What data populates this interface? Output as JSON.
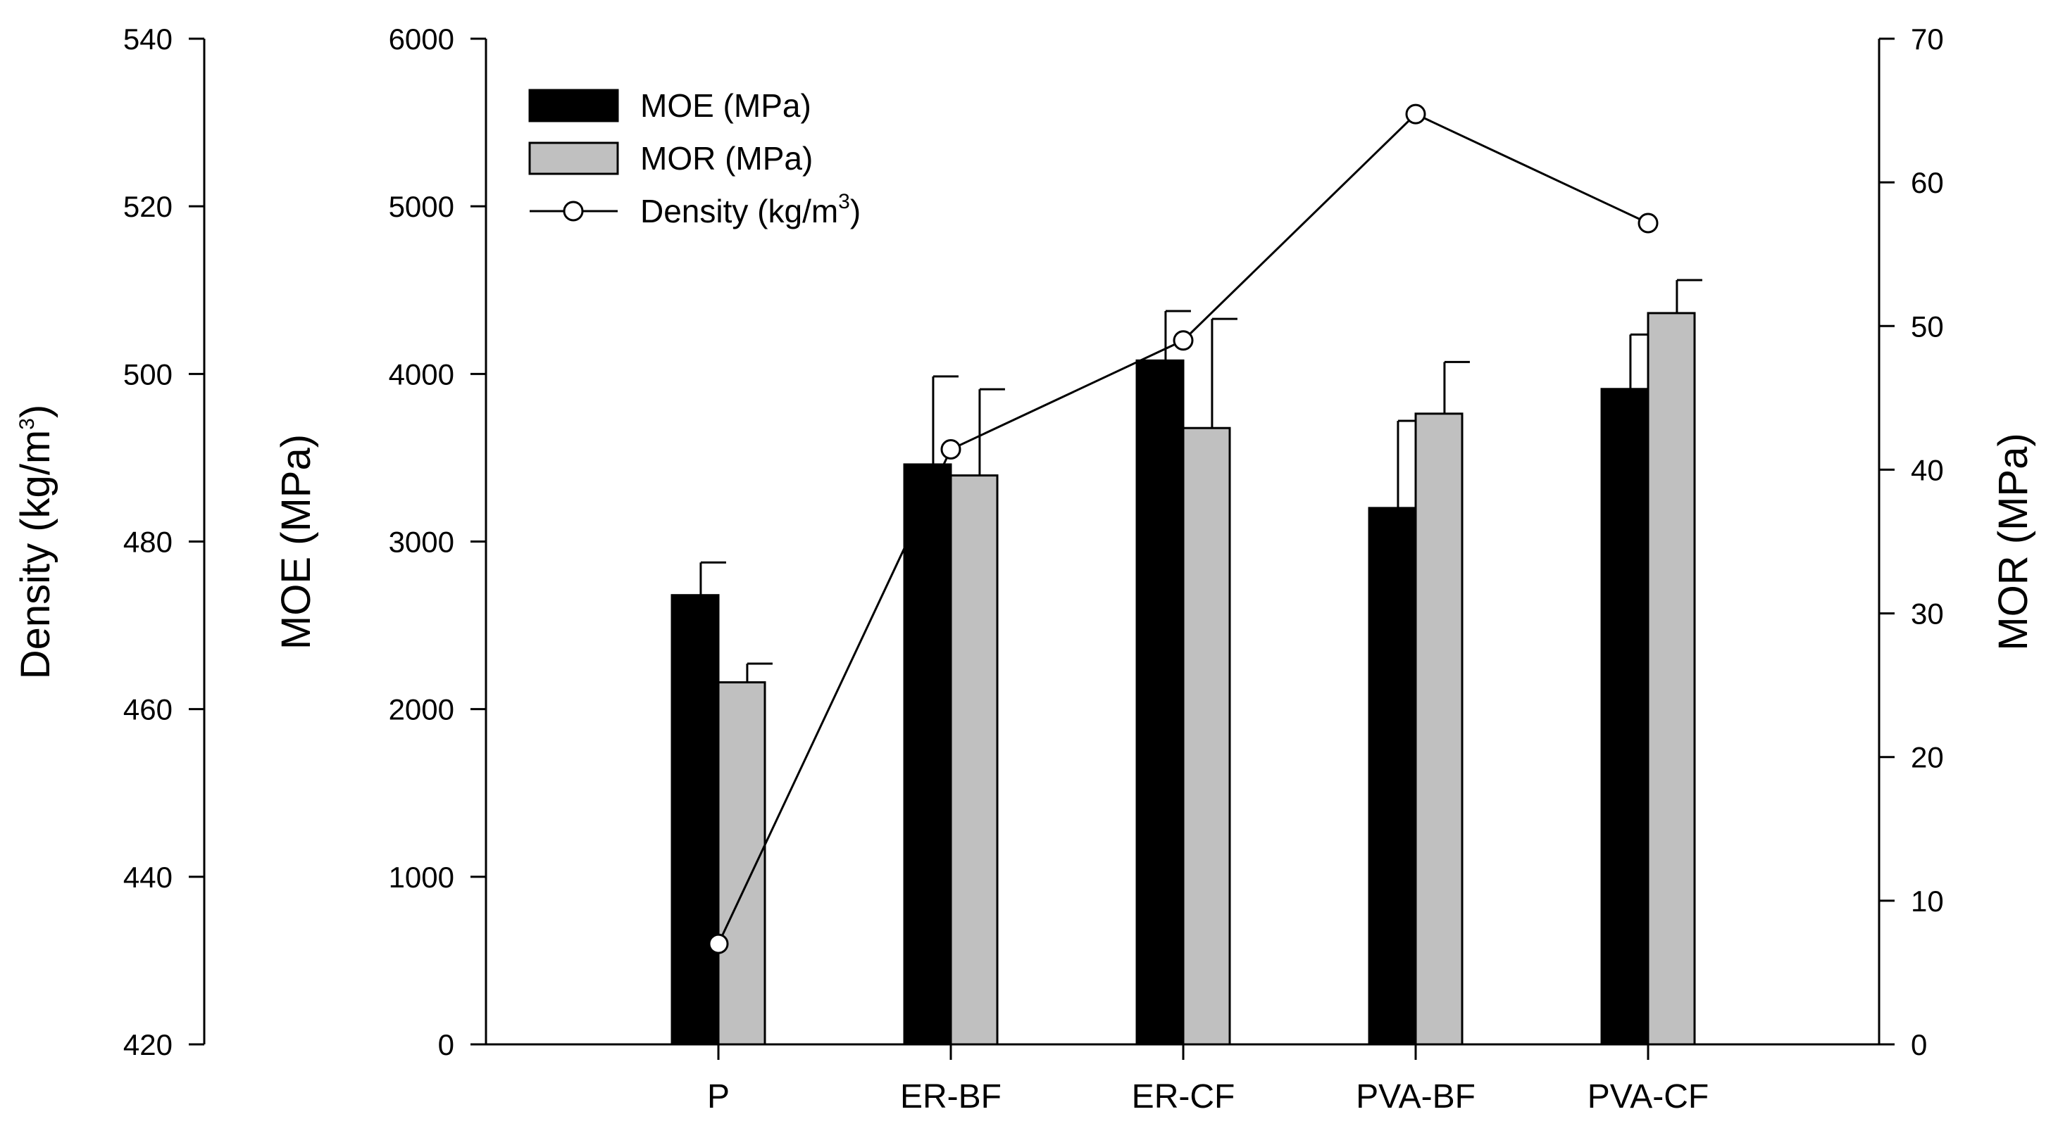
{
  "chart_data": {
    "type": "bar",
    "categories": [
      "P",
      "ER-BF",
      "ER-CF",
      "PVA-BF",
      "PVA-CF"
    ],
    "series": [
      {
        "name": "MOE (MPa)",
        "axis": "moe",
        "kind": "bar",
        "color": "#000000",
        "values": [
          2680,
          3460,
          4080,
          3200,
          3910
        ],
        "errors": [
          195,
          525,
          295,
          520,
          325
        ]
      },
      {
        "name": "MOR (MPa)",
        "axis": "mor",
        "kind": "bar",
        "color": "#c0c0c0",
        "values": [
          25.2,
          39.6,
          42.9,
          43.9,
          50.9
        ],
        "errors": [
          1.3,
          6.0,
          7.6,
          3.6,
          2.3
        ]
      },
      {
        "name": "Density (kg/m3)",
        "axis": "density",
        "kind": "line",
        "color": "#000000",
        "values": [
          432,
          491,
          504,
          531,
          518
        ]
      }
    ],
    "axes": {
      "density": {
        "title": "Density (kg/m",
        "title_sup": "3",
        "title_end": ")",
        "min": 420,
        "max": 540,
        "ticks": [
          "540",
          "520",
          "500",
          "480",
          "460",
          "440",
          "420"
        ]
      },
      "moe": {
        "title": "MOE (MPa)",
        "min": 0,
        "max": 6000,
        "ticks": [
          "6000",
          "5000",
          "4000",
          "3000",
          "2000",
          "1000",
          "0"
        ]
      },
      "mor": {
        "title": "MOR (MPa)",
        "min": 0,
        "max": 70,
        "ticks": [
          "70",
          "60",
          "50",
          "40",
          "30",
          "20",
          "10",
          "0"
        ]
      }
    },
    "legend": {
      "position": "top-left",
      "items": [
        {
          "label": "MOE (MPa)",
          "swatch": "#000000"
        },
        {
          "label": "MOR (MPa)",
          "swatch": "#c0c0c0"
        },
        {
          "label": "Density (kg/m",
          "sup": "3",
          "end": ")",
          "swatch": "marker"
        }
      ]
    },
    "grid": false
  }
}
